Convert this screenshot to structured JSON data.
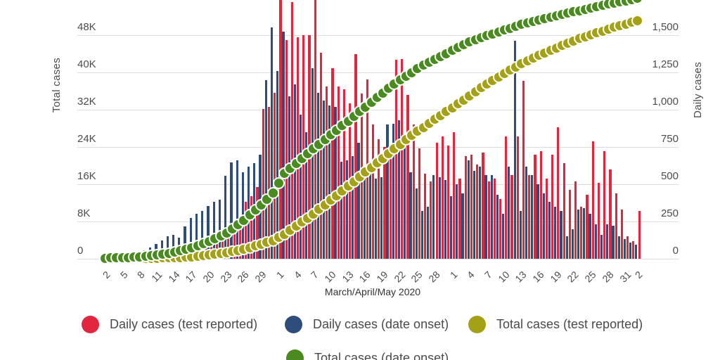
{
  "chart_data": {
    "type": "bar",
    "subtype": "grouped daily bars + cumulative dot lines, dual y-axis",
    "x_axis_title": "March/April/May 2020",
    "n_days": 93,
    "x_start": "March 2, 2020",
    "x_end": "June 2, 2020",
    "x_tick_labels": [
      {
        "i": 0,
        "t": "2"
      },
      {
        "i": 3,
        "t": "5"
      },
      {
        "i": 6,
        "t": "8"
      },
      {
        "i": 9,
        "t": "11"
      },
      {
        "i": 12,
        "t": "14"
      },
      {
        "i": 15,
        "t": "17"
      },
      {
        "i": 18,
        "t": "20"
      },
      {
        "i": 21,
        "t": "23"
      },
      {
        "i": 24,
        "t": "26"
      },
      {
        "i": 27,
        "t": "29"
      },
      {
        "i": 30,
        "t": "1"
      },
      {
        "i": 33,
        "t": "4"
      },
      {
        "i": 36,
        "t": "7"
      },
      {
        "i": 39,
        "t": "10"
      },
      {
        "i": 42,
        "t": "13"
      },
      {
        "i": 45,
        "t": "16"
      },
      {
        "i": 48,
        "t": "19"
      },
      {
        "i": 51,
        "t": "22"
      },
      {
        "i": 54,
        "t": "25"
      },
      {
        "i": 57,
        "t": "28"
      },
      {
        "i": 60,
        "t": "1"
      },
      {
        "i": 63,
        "t": "4"
      },
      {
        "i": 66,
        "t": "7"
      },
      {
        "i": 69,
        "t": "10"
      },
      {
        "i": 72,
        "t": "13"
      },
      {
        "i": 75,
        "t": "16"
      },
      {
        "i": 78,
        "t": "19"
      },
      {
        "i": 81,
        "t": "22"
      },
      {
        "i": 84,
        "t": "25"
      },
      {
        "i": 87,
        "t": "28"
      },
      {
        "i": 90,
        "t": "31"
      },
      {
        "i": 92,
        "t": "2"
      }
    ],
    "y_left": {
      "title": "Total cases",
      "ticks": [
        "0",
        "8K",
        "16K",
        "24K",
        "32K",
        "40K",
        "48K"
      ],
      "tick_values": [
        0,
        8000,
        16000,
        24000,
        32000,
        40000,
        48000
      ],
      "visible_max": 48000
    },
    "y_right": {
      "title": "Daily cases",
      "ticks": [
        "0",
        "250",
        "500",
        "750",
        "1,000",
        "1,250",
        "1,500"
      ],
      "tick_values": [
        0,
        250,
        500,
        750,
        1000,
        1250,
        1500
      ],
      "visible_max": 1500
    },
    "grid": true,
    "legend_position": "bottom",
    "series": [
      {
        "name": "Daily cases (test reported)",
        "render": "bar",
        "axis": "right",
        "color": "#e3263d",
        "values": [
          0,
          0,
          0,
          0,
          0,
          0,
          0,
          0,
          0,
          0,
          20,
          35,
          45,
          40,
          60,
          90,
          110,
          130,
          150,
          110,
          150,
          190,
          240,
          280,
          380,
          420,
          480,
          1005,
          1020,
          1115,
          1750,
          1468,
          1720,
          1487,
          1500,
          1500,
          1750,
          1383,
          1156,
          1279,
          1156,
          1138,
          1043,
          1374,
          1110,
          1203,
          900,
          800,
          750,
          760,
          1335,
          1340,
          1100,
          900,
          740,
          570,
          520,
          780,
          820,
          760,
          850,
          540,
          690,
          700,
          630,
          710,
          520,
          540,
          400,
          820,
          560,
          820,
          1195,
          560,
          700,
          720,
          540,
          700,
          880,
          640,
          460,
          520,
          350,
          430,
          790,
          510,
          720,
          600,
          440,
          330,
          150,
          120,
          320
        ]
      },
      {
        "name": "Daily cases (date onset)",
        "render": "bar",
        "axis": "right",
        "color": "#2e4d7b",
        "values": [
          3,
          6,
          10,
          14,
          20,
          28,
          40,
          55,
          75,
          100,
          125,
          150,
          160,
          140,
          215,
          275,
          300,
          320,
          355,
          380,
          395,
          555,
          645,
          660,
          580,
          620,
          640,
          700,
          1200,
          1550,
          1260,
          1525,
          1090,
          1170,
          965,
          850,
          1280,
          1115,
          1060,
          1030,
          1020,
          650,
          660,
          690,
          780,
          590,
          650,
          540,
          545,
          900,
          905,
          930,
          760,
          580,
          470,
          320,
          350,
          560,
          545,
          530,
          420,
          500,
          440,
          660,
          590,
          620,
          560,
          560,
          430,
          300,
          620,
          1460,
          320,
          620,
          560,
          500,
          440,
          380,
          350,
          320,
          150,
          200,
          330,
          340,
          300,
          230,
          160,
          230,
          220,
          150,
          130,
          110,
          95
        ]
      },
      {
        "name": "Total cases (test reported)",
        "render": "dots",
        "axis": "left",
        "color": "#a4a117",
        "values": [
          0,
          5,
          10,
          15,
          20,
          25,
          30,
          43,
          55,
          68,
          80,
          115,
          150,
          217,
          283,
          350,
          467,
          583,
          700,
          867,
          1033,
          1200,
          1467,
          1733,
          2000,
          2333,
          2667,
          3000,
          3400,
          3800,
          4500,
          5200,
          6100,
          7000,
          7833,
          8667,
          9500,
          10500,
          11500,
          12500,
          13500,
          14500,
          15500,
          16500,
          17500,
          18500,
          19500,
          20500,
          21500,
          22500,
          23500,
          24500,
          25500,
          26375,
          27250,
          28125,
          29000,
          29833,
          30667,
          31500,
          32333,
          33167,
          34000,
          34875,
          35750,
          36625,
          37500,
          38250,
          39000,
          39750,
          40500,
          41125,
          41750,
          42375,
          43000,
          43550,
          44100,
          44650,
          45200,
          45700,
          46200,
          46700,
          47200,
          47600,
          48000,
          48400,
          48800,
          49200,
          49600,
          50000,
          50333,
          50667,
          51000
        ]
      },
      {
        "name": "Total cases (date onset)",
        "render": "dots",
        "axis": "left",
        "color": "#4a8b1f",
        "values": [
          50,
          83,
          117,
          150,
          217,
          283,
          350,
          467,
          583,
          700,
          900,
          1100,
          1300,
          1600,
          1900,
          2200,
          2667,
          3133,
          3600,
          4233,
          4867,
          5500,
          6400,
          7300,
          8200,
          9300,
          10400,
          11500,
          12750,
          14000,
          16150,
          18300,
          19350,
          20400,
          21450,
          22500,
          23500,
          24500,
          25500,
          26500,
          27500,
          28500,
          29500,
          30500,
          31500,
          32500,
          33500,
          34500,
          35500,
          36500,
          37500,
          38300,
          39100,
          39900,
          40700,
          41500,
          42125,
          42750,
          43375,
          44000,
          44625,
          45250,
          45875,
          46500,
          46925,
          47350,
          47775,
          48200,
          48600,
          49000,
          49400,
          49800,
          50200,
          50520,
          50840,
          51160,
          51480,
          51800,
          52080,
          52360,
          52640,
          52920,
          53200,
          53480,
          53760,
          54040,
          54320,
          54600,
          54833,
          55067,
          55300,
          55550,
          55800
        ]
      }
    ],
    "colors": {
      "grid": "#dcdcdc",
      "axis_text": "#4c4c4c",
      "legend_text": "#4a4a4a"
    }
  },
  "legend": {
    "items": [
      {
        "label": "Daily cases (test reported)",
        "color": "#e3263d"
      },
      {
        "label": "Daily cases (date onset)",
        "color": "#2e4d7b"
      },
      {
        "label": "Total cases (test reported)",
        "color": "#a4a117"
      },
      {
        "label": "Total cases (date onset)",
        "color": "#4a8b1f"
      }
    ]
  }
}
